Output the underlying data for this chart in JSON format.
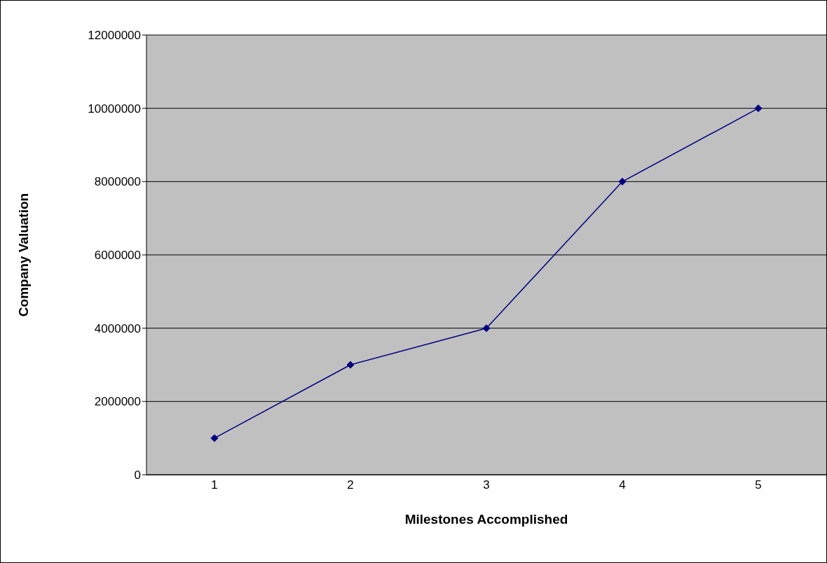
{
  "chart_data": {
    "type": "line",
    "xlabel": "Milestones Accomplished",
    "ylabel": "Company Valuation",
    "categories": [
      "1",
      "2",
      "3",
      "4",
      "5"
    ],
    "series": [
      {
        "color": "#000080",
        "values": [
          1000000,
          3000000,
          4000000,
          8000000,
          10000000
        ]
      }
    ],
    "ylim": [
      0,
      12000000
    ],
    "yticks": [
      0,
      2000000,
      4000000,
      6000000,
      8000000,
      10000000,
      12000000
    ],
    "grid": "y",
    "marker": "diamond",
    "line_style": "solid",
    "legend": false
  }
}
